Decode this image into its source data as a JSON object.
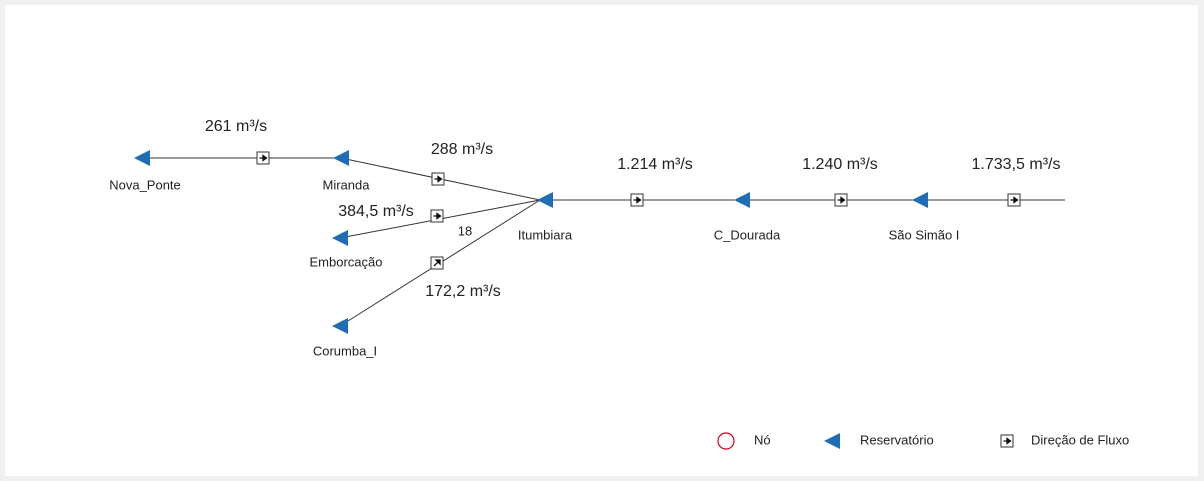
{
  "nodes": [
    {
      "label": "Nova_Ponte"
    },
    {
      "label": "Miranda"
    },
    {
      "label": "Itumbiara"
    },
    {
      "label": "Emborcação"
    },
    {
      "label": "Corumba_I"
    },
    {
      "label": "C_Dourada"
    },
    {
      "label": "São Simão I"
    }
  ],
  "flows": [
    {
      "label": "261 m³/s"
    },
    {
      "label": "288 m³/s"
    },
    {
      "label": "384,5 m³/s"
    },
    {
      "label": "172,2 m³/s"
    },
    {
      "label": "1.214 m³/s"
    },
    {
      "label": "1.240 m³/s"
    },
    {
      "label": "1.733,5 m³/s"
    }
  ],
  "annotation": "18",
  "legend": {
    "node": "Nó",
    "reservoir": "Reservatório",
    "flow_direction": "Direção de Fluxo"
  }
}
